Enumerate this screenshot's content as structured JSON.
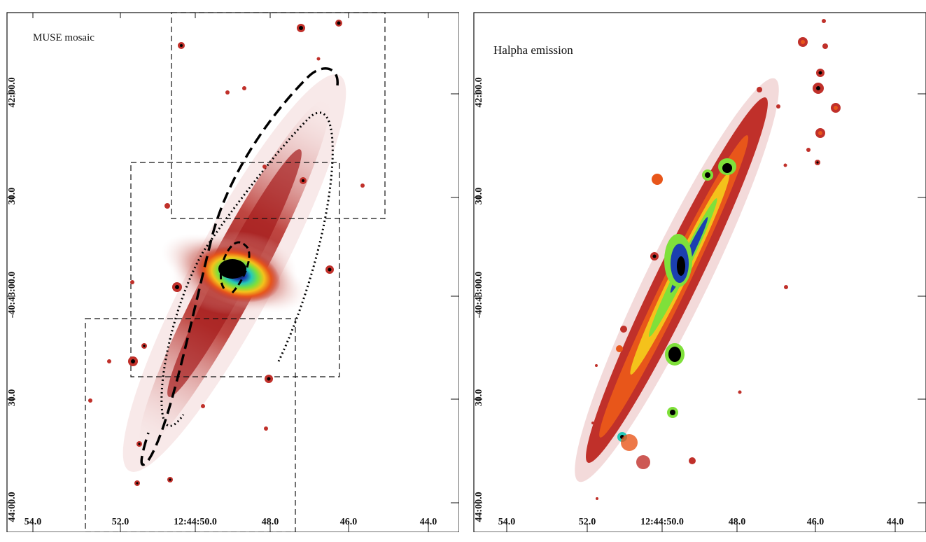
{
  "panels": [
    {
      "title": "MUSE mosaic",
      "y_ticks": [
        "42:00.0",
        "30.0",
        "-40:43:00.0",
        "30.0",
        "44:00.0"
      ],
      "x_ticks": [
        "54.0",
        "52.0",
        "12:44:50.0",
        "48.0",
        "46.0",
        "44.0"
      ],
      "fields_of_view": 3,
      "overlays": [
        "dashed-ellipse-arc",
        "dotted-ellipse-arc",
        "dashed-inner-arc"
      ]
    },
    {
      "title": "Halpha emission",
      "y_ticks": [
        "42:00.0",
        "30.0",
        "-40:43:00.0",
        "30.0",
        "44:00.0"
      ],
      "x_ticks": [
        "54.0",
        "52.0",
        "12:44:50.0",
        "48.0",
        "46.0",
        "44.0"
      ]
    }
  ],
  "colormap": [
    "#f3dede",
    "#c0302a",
    "#e8561a",
    "#f4c21b",
    "#7fe03a",
    "#25c9b8",
    "#1b3fb0",
    "#000000"
  ]
}
